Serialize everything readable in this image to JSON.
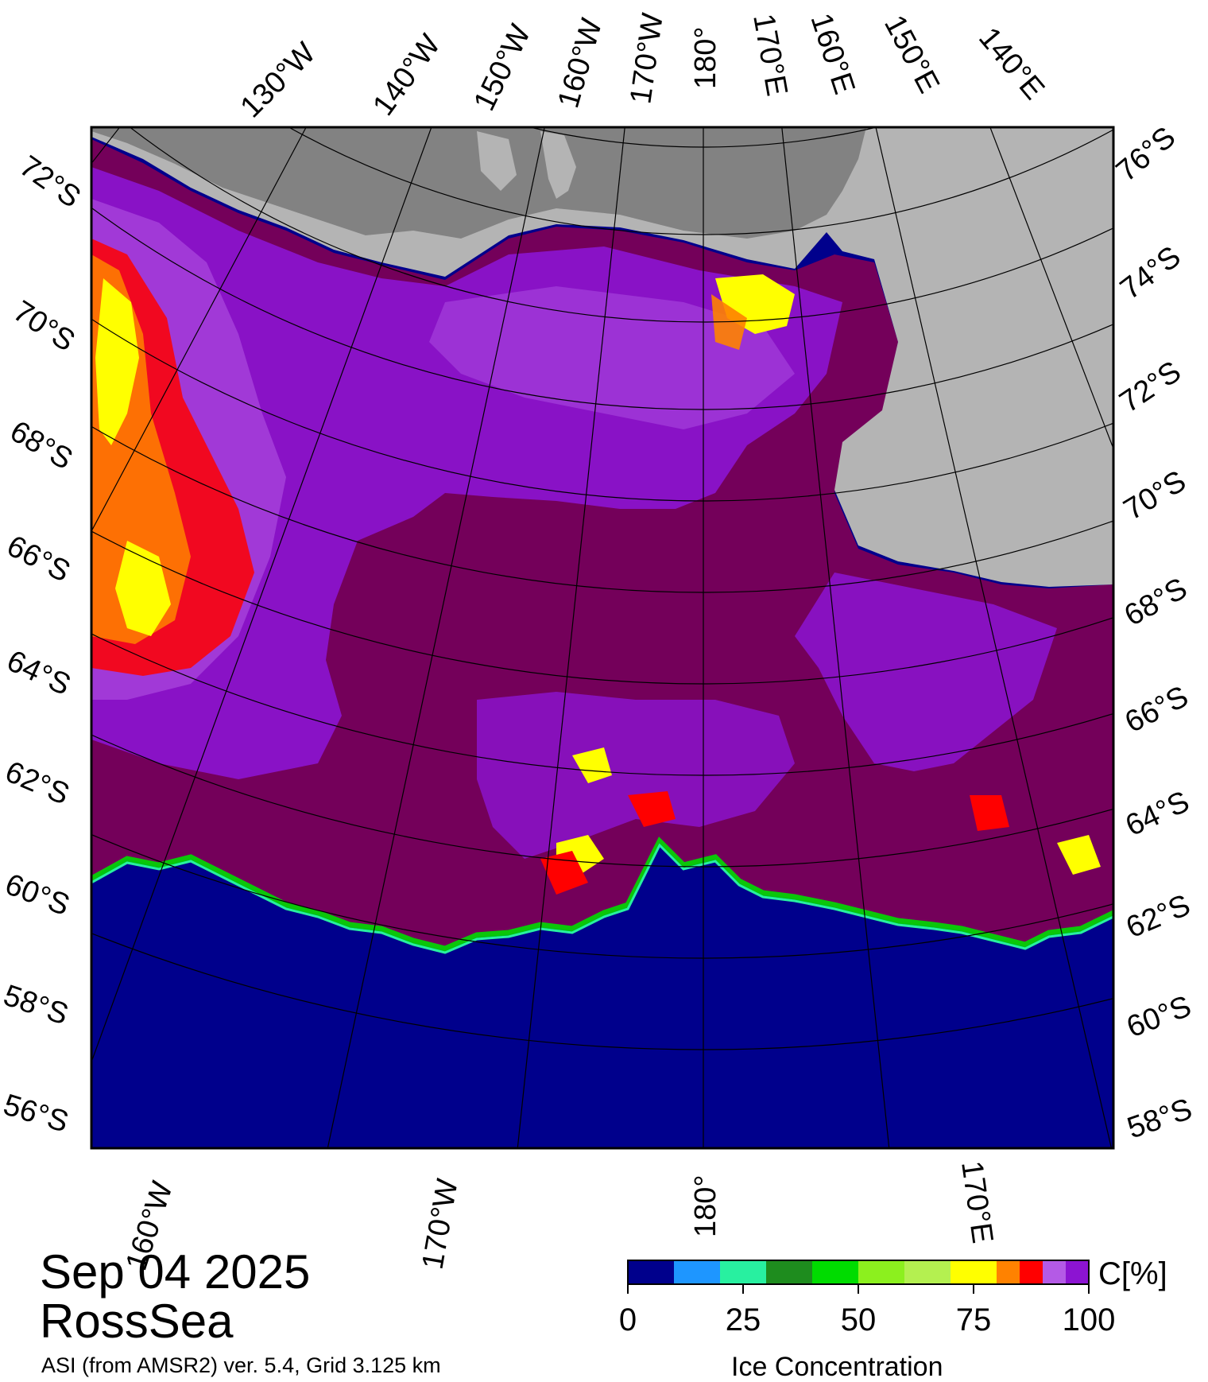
{
  "map": {
    "date": "Sep 04 2025",
    "region": "RossSea",
    "product": "ASI (from AMSR2) ver. 5.4,  Grid 3.125 km",
    "colors": {
      "open_water": "#00008c",
      "ice_full": "#74005a",
      "ice_high": "#8c14d2",
      "ice_mid": "#b45ae6",
      "ice_red": "#ff0000",
      "ice_orange": "#ff8200",
      "ice_yellow": "#ffff00",
      "land_light": "#b4b4b4",
      "land_dark": "#828282"
    },
    "grid_labels": {
      "top_longitudes": [
        "130°W",
        "140°W",
        "150°W",
        "160°W",
        "170°W",
        "180°",
        "170°E",
        "160°E",
        "150°E",
        "140°E"
      ],
      "bottom_longitudes": [
        "160°W",
        "170°W",
        "180°",
        "170°E"
      ],
      "left_latitudes": [
        "72°S",
        "70°S",
        "68°S",
        "66°S",
        "64°S",
        "62°S",
        "60°S",
        "58°S",
        "56°S"
      ],
      "right_latitudes": [
        "76°S",
        "74°S",
        "72°S",
        "70°S",
        "68°S",
        "66°S",
        "64°S",
        "62°S",
        "60°S",
        "58°S"
      ]
    }
  },
  "colorbar": {
    "title": "Ice Concentration",
    "unit": "C[%]",
    "ticks": [
      "0",
      "25",
      "50",
      "75",
      "100"
    ],
    "range": [
      0,
      100
    ],
    "bins": [
      {
        "from": 0,
        "to": 10,
        "color": "#00008c"
      },
      {
        "from": 10,
        "to": 20,
        "color": "#1e96ff"
      },
      {
        "from": 20,
        "to": 30,
        "color": "#28f0a0"
      },
      {
        "from": 30,
        "to": 40,
        "color": "#1e8c1e"
      },
      {
        "from": 40,
        "to": 50,
        "color": "#00dc00"
      },
      {
        "from": 50,
        "to": 60,
        "color": "#8cf01e"
      },
      {
        "from": 60,
        "to": 70,
        "color": "#b4f050"
      },
      {
        "from": 70,
        "to": 80,
        "color": "#ffff00"
      },
      {
        "from": 80,
        "to": 85,
        "color": "#ff8200"
      },
      {
        "from": 85,
        "to": 90,
        "color": "#ff0000"
      },
      {
        "from": 90,
        "to": 95,
        "color": "#b45ae6"
      },
      {
        "from": 95,
        "to": 100,
        "color": "#8c14d2"
      }
    ]
  }
}
